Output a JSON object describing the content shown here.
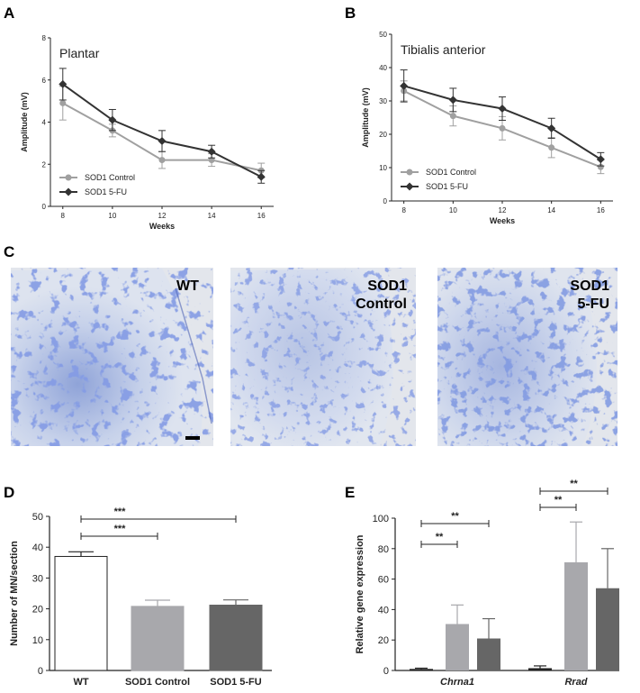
{
  "panels": {
    "a": "A",
    "b": "B",
    "c": "C",
    "d": "D",
    "e": "E"
  },
  "micrographs": [
    {
      "label_lines": [
        "WT"
      ]
    },
    {
      "label_lines": [
        "SOD1",
        "Control"
      ]
    },
    {
      "label_lines": [
        "SOD1",
        "5-FU"
      ]
    }
  ],
  "chart_data": [
    {
      "id": "A",
      "type": "line",
      "title": "Plantar",
      "xlabel": "Weeks",
      "ylabel": "Amplitude (mV)",
      "x": [
        8,
        10,
        12,
        14,
        16
      ],
      "xlim": [
        7.5,
        16.5
      ],
      "ylim": [
        0,
        8
      ],
      "yticks": [
        0,
        2,
        4,
        6,
        8
      ],
      "xticks": [
        8,
        10,
        12,
        14,
        16
      ],
      "legend": "bottom-left",
      "series": [
        {
          "name": "SOD1 Control",
          "color": "#a0a0a0",
          "marker": "circle",
          "values": [
            4.9,
            3.6,
            2.2,
            2.2,
            1.7
          ],
          "err": [
            0.8,
            0.3,
            0.4,
            0.3,
            0.35
          ]
        },
        {
          "name": "SOD1 5-FU",
          "color": "#333333",
          "marker": "diamond",
          "values": [
            5.8,
            4.1,
            3.1,
            2.6,
            1.4
          ],
          "err": [
            0.75,
            0.5,
            0.5,
            0.3,
            0.3
          ]
        }
      ]
    },
    {
      "id": "B",
      "type": "line",
      "title": "Tibialis anterior",
      "xlabel": "Weeks",
      "ylabel": "Amplitude (mV)",
      "x": [
        8,
        10,
        12,
        14,
        16
      ],
      "xlim": [
        7.5,
        16.5
      ],
      "ylim": [
        0,
        50
      ],
      "yticks": [
        0,
        10,
        20,
        30,
        40,
        50
      ],
      "xticks": [
        8,
        10,
        12,
        14,
        16
      ],
      "legend": "bottom-left",
      "series": [
        {
          "name": "SOD1 Control",
          "color": "#a0a0a0",
          "marker": "circle",
          "values": [
            33.0,
            25.5,
            21.8,
            16.0,
            10.2
          ],
          "err": [
            3.0,
            3.0,
            3.5,
            3.0,
            2.0
          ]
        },
        {
          "name": "SOD1 5-FU",
          "color": "#333333",
          "marker": "diamond",
          "values": [
            34.5,
            30.3,
            27.7,
            21.8,
            12.5
          ],
          "err": [
            4.8,
            3.5,
            3.5,
            3.0,
            2.0
          ]
        }
      ]
    },
    {
      "id": "D",
      "type": "bar",
      "ylabel": "Number of MN/section",
      "categories": [
        "WT",
        "SOD1 Control",
        "SOD1 5-FU"
      ],
      "values": [
        37.0,
        20.8,
        21.2
      ],
      "err": [
        1.5,
        2.0,
        1.7
      ],
      "colors": [
        "#ffffff",
        "#a8a8ac",
        "#666666"
      ],
      "ylim": [
        0,
        50
      ],
      "yticks": [
        0,
        10,
        20,
        30,
        40,
        50
      ],
      "significance": [
        {
          "from": 0,
          "to": 2,
          "label": "***"
        },
        {
          "from": 0,
          "to": 1,
          "label": "***"
        }
      ]
    },
    {
      "id": "E",
      "type": "bar",
      "ylabel": "Relative gene expression",
      "categories": [
        "Chrna1",
        "Rrad"
      ],
      "series": [
        {
          "color": "#222222",
          "values": [
            1.0,
            1.5
          ],
          "err": [
            0.5,
            1.5
          ]
        },
        {
          "color": "#a8a8ac",
          "values": [
            30.5,
            71.0
          ],
          "err": [
            12.5,
            26.5
          ]
        },
        {
          "color": "#666666",
          "values": [
            21.0,
            54.0
          ],
          "err": [
            13.0,
            26.0
          ]
        }
      ],
      "ylim": [
        0,
        100
      ],
      "yticks": [
        0,
        20,
        40,
        60,
        80,
        100
      ],
      "significance": [
        {
          "group": 0,
          "from": 0,
          "to": 2,
          "label": "**"
        },
        {
          "group": 0,
          "from": 0,
          "to": 1,
          "label": "**"
        },
        {
          "group": 1,
          "from": 0,
          "to": 2,
          "label": "**"
        },
        {
          "group": 1,
          "from": 0,
          "to": 1,
          "label": "**"
        }
      ]
    }
  ]
}
